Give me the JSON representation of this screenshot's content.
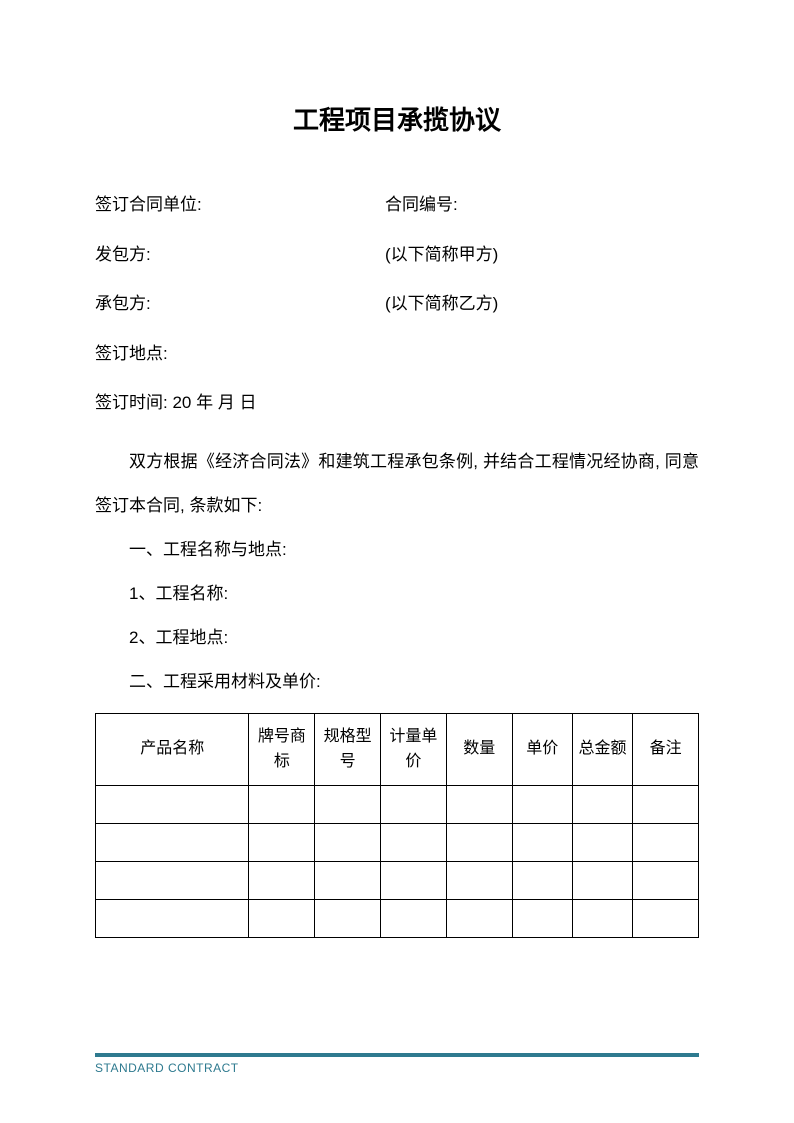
{
  "title": "工程项目承揽协议",
  "info": {
    "signing_unit_label": "签订合同单位:",
    "contract_num_label": "合同编号:",
    "party_a_label": "发包方:",
    "party_a_suffix": "(以下简称甲方)",
    "party_b_label": "承包方:",
    "party_b_suffix": "(以下简称乙方)",
    "location_label": "签订地点:",
    "date_label": "签订时间:  20    年    月     日"
  },
  "preamble": "双方根据《经济合同法》和建筑工程承包条例,  并结合工程情况经协商,  同意签订本合同,  条款如下:",
  "sections": {
    "s1": "一、工程名称与地点:",
    "s1_1": "1、工程名称:",
    "s1_2": "2、工程地点:",
    "s2": "二、工程采用材料及单价:"
  },
  "table": {
    "columns": [
      "产品名称",
      "牌号商标",
      "规格型号",
      "计量单价",
      "数量",
      "单价",
      "总金额",
      "备注"
    ],
    "col_widths": [
      "140px",
      "60px",
      "60px",
      "60px",
      "60px",
      "55px",
      "55px",
      "60px"
    ],
    "row_count": 4
  },
  "footer": {
    "text": "STANDARD CONTRACT",
    "line_color": "#2e7a8f",
    "text_color": "#2e7a8f"
  }
}
